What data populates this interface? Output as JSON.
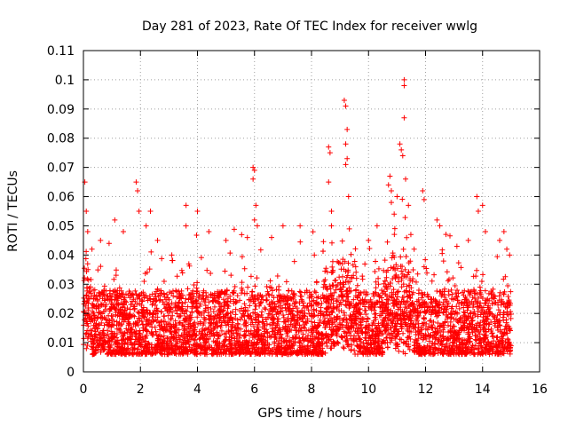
{
  "chart_data": {
    "type": "scatter",
    "title": "Day 281 of 2023, Rate Of TEC Index for receiver wwlg",
    "xlabel": "GPS time / hours",
    "ylabel": "ROTI / TECUs",
    "xlim": [
      0,
      16
    ],
    "ylim": [
      0,
      0.11
    ],
    "x_ticks": [
      "0",
      "2",
      "4",
      "6",
      "8",
      "10",
      "12",
      "14",
      "16"
    ],
    "y_ticks": [
      "0",
      "0.01",
      "0.02",
      "0.03",
      "0.04",
      "0.05",
      "0.06",
      "0.07",
      "0.08",
      "0.09",
      "0.1",
      "0.11"
    ],
    "grid": true,
    "marker": "+",
    "color": "#ff0000",
    "data_x_range": [
      0,
      15
    ],
    "series": [
      {
        "name": "ROTI",
        "points": [
          [
            0.05,
            0.065
          ],
          [
            0.1,
            0.055
          ],
          [
            0.15,
            0.048
          ],
          [
            0.3,
            0.042
          ],
          [
            0.6,
            0.045
          ],
          [
            0.9,
            0.044
          ],
          [
            1.1,
            0.052
          ],
          [
            1.4,
            0.048
          ],
          [
            1.85,
            0.065
          ],
          [
            1.9,
            0.062
          ],
          [
            1.95,
            0.055
          ],
          [
            2.2,
            0.05
          ],
          [
            2.35,
            0.055
          ],
          [
            2.6,
            0.045
          ],
          [
            3.1,
            0.04
          ],
          [
            3.6,
            0.057
          ],
          [
            3.6,
            0.05
          ],
          [
            4.0,
            0.055
          ],
          [
            4.4,
            0.048
          ],
          [
            5.0,
            0.045
          ],
          [
            5.55,
            0.047
          ],
          [
            5.75,
            0.046
          ],
          [
            5.95,
            0.07
          ],
          [
            6.0,
            0.069
          ],
          [
            5.95,
            0.066
          ],
          [
            6.05,
            0.057
          ],
          [
            6.0,
            0.052
          ],
          [
            6.1,
            0.05
          ],
          [
            6.6,
            0.046
          ],
          [
            7.0,
            0.05
          ],
          [
            7.6,
            0.05
          ],
          [
            8.1,
            0.04
          ],
          [
            8.6,
            0.077
          ],
          [
            8.65,
            0.075
          ],
          [
            8.6,
            0.065
          ],
          [
            8.7,
            0.055
          ],
          [
            8.7,
            0.05
          ],
          [
            9.15,
            0.093
          ],
          [
            9.2,
            0.091
          ],
          [
            9.25,
            0.083
          ],
          [
            9.2,
            0.078
          ],
          [
            9.25,
            0.073
          ],
          [
            9.2,
            0.071
          ],
          [
            9.3,
            0.06
          ],
          [
            10.0,
            0.045
          ],
          [
            10.3,
            0.05
          ],
          [
            10.7,
            0.064
          ],
          [
            10.75,
            0.067
          ],
          [
            10.8,
            0.062
          ],
          [
            10.8,
            0.058
          ],
          [
            10.9,
            0.054
          ],
          [
            11.0,
            0.06
          ],
          [
            11.1,
            0.078
          ],
          [
            11.15,
            0.076
          ],
          [
            11.2,
            0.074
          ],
          [
            11.25,
            0.1
          ],
          [
            11.25,
            0.098
          ],
          [
            11.25,
            0.087
          ],
          [
            11.3,
            0.066
          ],
          [
            11.4,
            0.057
          ],
          [
            11.6,
            0.042
          ],
          [
            11.9,
            0.062
          ],
          [
            11.95,
            0.059
          ],
          [
            12.4,
            0.052
          ],
          [
            12.5,
            0.05
          ],
          [
            13.1,
            0.043
          ],
          [
            13.5,
            0.045
          ],
          [
            13.8,
            0.06
          ],
          [
            13.85,
            0.055
          ],
          [
            14.0,
            0.057
          ],
          [
            14.1,
            0.048
          ],
          [
            14.6,
            0.045
          ],
          [
            14.75,
            0.048
          ],
          [
            14.85,
            0.042
          ],
          [
            14.95,
            0.04
          ]
        ]
      }
    ]
  }
}
